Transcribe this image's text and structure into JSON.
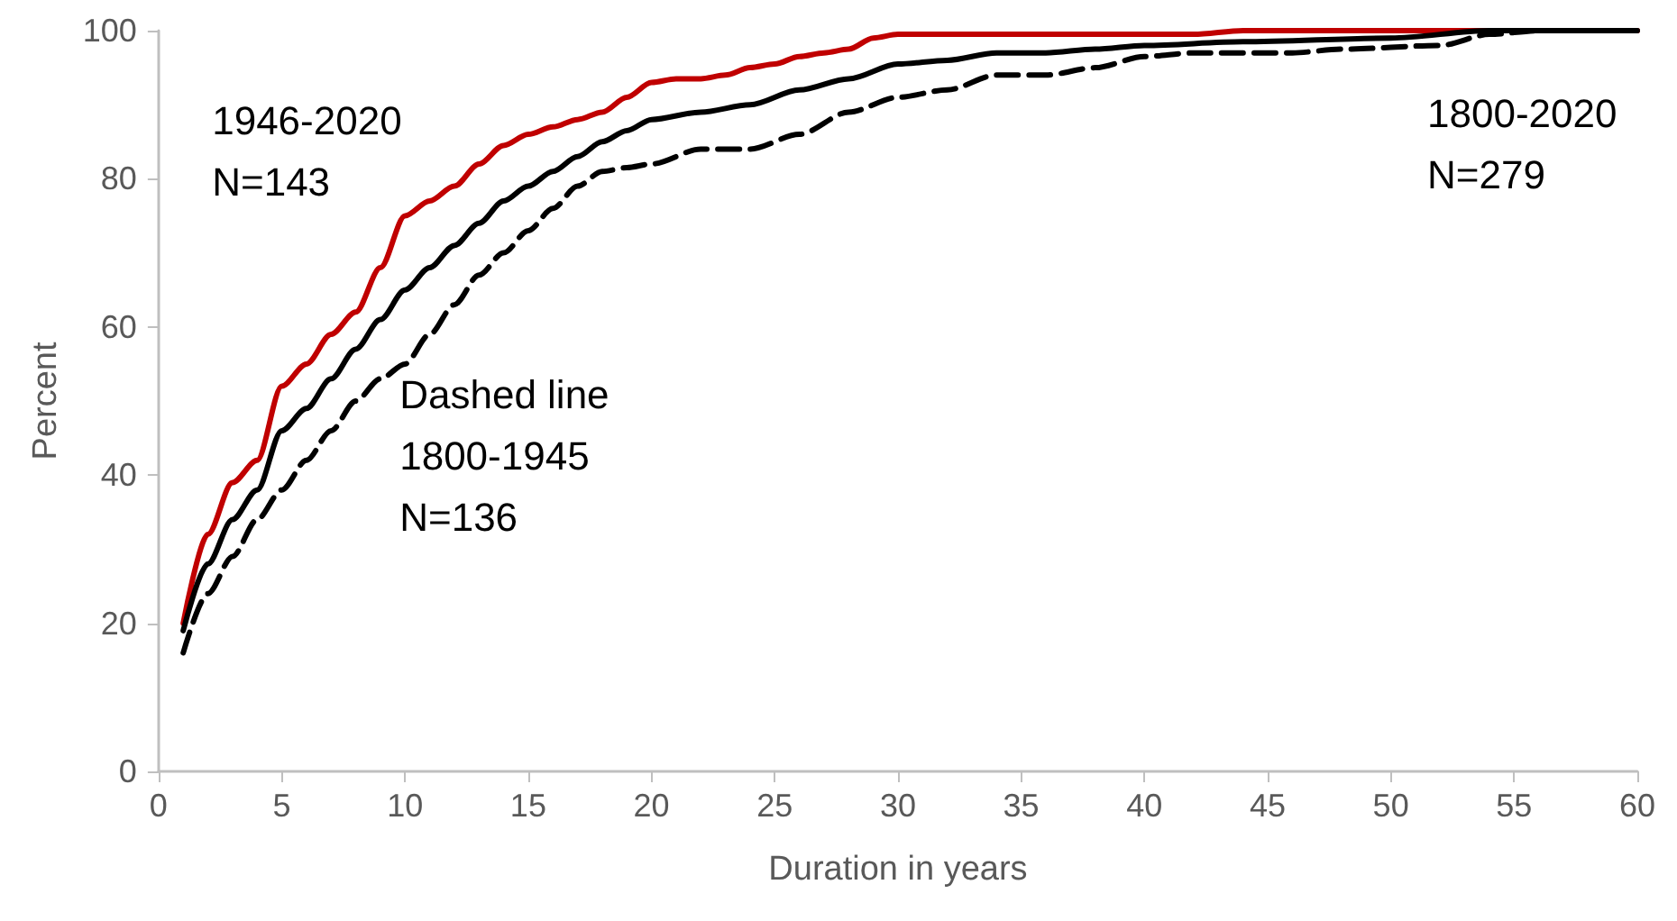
{
  "chart_data": {
    "type": "line",
    "xlabel": "Duration in years",
    "ylabel": "Percent",
    "xlim": [
      0,
      60
    ],
    "xticks": [
      0,
      5,
      10,
      15,
      20,
      25,
      30,
      35,
      40,
      45,
      50,
      55,
      60
    ],
    "ylim": [
      0,
      100
    ],
    "yticks": [
      0,
      20,
      40,
      60,
      80,
      100
    ],
    "grid": false,
    "marker": "none",
    "series": [
      {
        "color": "#c00000",
        "line_style": "solid",
        "x": [
          1,
          2,
          3,
          4,
          5,
          6,
          7,
          8,
          9,
          10,
          11,
          12,
          13,
          14,
          15,
          16,
          17,
          18,
          19,
          20,
          21,
          22,
          23,
          24,
          25,
          26,
          27,
          28,
          29,
          30,
          35,
          42,
          44,
          50,
          60
        ],
        "values": [
          20,
          32,
          39,
          42,
          52,
          55,
          59,
          62,
          68,
          75,
          77,
          79,
          82,
          84.5,
          86,
          87,
          88,
          89,
          91,
          93,
          93.5,
          93.5,
          94,
          95,
          95.5,
          96.5,
          97,
          97.5,
          99,
          99.5,
          99.5,
          99.5,
          100,
          100,
          100
        ]
      },
      {
        "color": "#000000",
        "line_style": "solid",
        "x": [
          1,
          2,
          3,
          4,
          5,
          6,
          7,
          8,
          9,
          10,
          11,
          12,
          13,
          14,
          15,
          16,
          17,
          18,
          19,
          20,
          22,
          24,
          26,
          28,
          30,
          32,
          34,
          36,
          38,
          40,
          44,
          50,
          54,
          60
        ],
        "values": [
          19,
          28,
          34,
          38,
          46,
          49,
          53,
          57,
          61,
          65,
          68,
          71,
          74,
          77,
          79,
          81,
          83,
          85,
          86.5,
          88,
          89,
          90,
          92,
          93.5,
          95.5,
          96,
          97,
          97,
          97.5,
          98,
          98.5,
          99,
          100,
          100
        ]
      },
      {
        "color": "#000000",
        "line_style": "dashed",
        "x": [
          1,
          2,
          3,
          4,
          5,
          6,
          7,
          8,
          9,
          10,
          11,
          12,
          13,
          14,
          15,
          16,
          17,
          18,
          19,
          20,
          22,
          24,
          26,
          28,
          30,
          32,
          34,
          36,
          38,
          40,
          42,
          46,
          48,
          52,
          54,
          56,
          60
        ],
        "values": [
          16,
          24,
          29,
          34,
          38,
          42,
          46,
          50,
          53,
          55,
          59,
          63,
          67,
          70,
          73,
          76,
          79,
          81,
          81.5,
          82,
          84,
          84,
          86,
          89,
          91,
          92,
          94,
          94,
          95,
          96.5,
          97,
          97,
          97.5,
          98,
          99.5,
          100,
          100
        ]
      }
    ],
    "annotations": [
      "1946-2020\nN=143",
      "Dashed line\n1800-1945\nN=136",
      "1800-2020\nN=279"
    ]
  }
}
